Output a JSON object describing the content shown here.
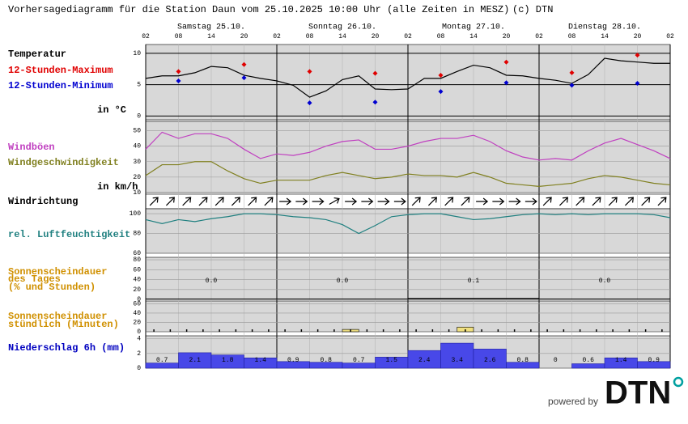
{
  "title": "Vorhersagediagramm für die Station Daun vom 25.10.2025 10:00 Uhr (alle Zeiten in MESZ)",
  "copyright": "(c) DTN",
  "days": [
    "Samstag 25.10.",
    "Sonntag 26.10.",
    "Montag 27.10.",
    "Dienstag 28.10."
  ],
  "time_labels": [
    "02",
    "08",
    "14",
    "20",
    "02",
    "08",
    "14",
    "20",
    "02",
    "08",
    "14",
    "20",
    "02",
    "08",
    "14",
    "20",
    "02"
  ],
  "chart_data": [
    {
      "type": "line",
      "heading": "Temperatur",
      "unit": "in °C",
      "ylim": [
        -0.6,
        11.4
      ],
      "yticks": [
        0,
        5,
        10
      ],
      "series": [
        {
          "style": "line",
          "color": "#000000",
          "values": [
            6.0,
            6.4,
            6.4,
            6.9,
            7.9,
            7.7,
            6.5,
            6.0,
            5.6,
            4.9,
            3.0,
            4.0,
            5.8,
            6.4,
            4.3,
            4.2,
            4.3,
            6.0,
            6.0,
            7.1,
            8.1,
            7.7,
            6.5,
            6.4,
            6.0,
            5.7,
            5.2,
            6.6,
            9.2,
            8.8,
            8.6,
            8.4,
            8.4
          ]
        },
        {
          "style": "points",
          "name": "12-Stunden-Maximum",
          "color": "#e00000",
          "values": [
            7.1,
            8.2,
            7.1,
            6.8,
            6.5,
            8.6,
            6.9,
            9.7
          ]
        },
        {
          "style": "points",
          "name": "12-Stunden-Minimum",
          "color": "#0000d0",
          "values": [
            5.6,
            6.1,
            2.1,
            2.2,
            3.9,
            5.3,
            4.9,
            5.2
          ]
        }
      ]
    },
    {
      "type": "line",
      "unit": "in km/h",
      "ylim": [
        10,
        56
      ],
      "yticks": [
        10,
        20,
        30,
        40,
        50
      ],
      "series": [
        {
          "style": "line",
          "name": "Windböen",
          "color": "#c040c0",
          "values": [
            38,
            49,
            45,
            48,
            48,
            45,
            38,
            32,
            35,
            34,
            36,
            40,
            43,
            44,
            38,
            38,
            40,
            43,
            45,
            45,
            47,
            43,
            37,
            33,
            31,
            32,
            31,
            37,
            42,
            45,
            41,
            37,
            32
          ]
        },
        {
          "style": "line",
          "name": "Windgeschwindigkeit",
          "color": "#808020",
          "values": [
            21,
            28,
            28,
            30,
            30,
            24,
            19,
            16,
            18,
            18,
            18,
            21,
            23,
            21,
            19,
            20,
            22,
            21,
            21,
            20,
            23,
            20,
            16,
            15,
            14,
            15,
            16,
            19,
            21,
            20,
            18,
            16,
            15
          ]
        }
      ]
    },
    {
      "type": "arrows",
      "heading": "Windrichtung",
      "values": [
        45,
        45,
        45,
        45,
        45,
        45,
        45,
        45,
        90,
        90,
        90,
        60,
        90,
        90,
        90,
        90,
        45,
        45,
        45,
        45,
        90,
        90,
        90,
        90,
        45,
        45,
        45,
        45,
        45,
        45,
        45,
        45
      ]
    },
    {
      "type": "line",
      "ylim": [
        60,
        105
      ],
      "yticks": [
        60,
        80,
        100
      ],
      "series": [
        {
          "style": "line",
          "name": "rel. Luftfeuchtigkeit",
          "color": "#208080",
          "values": [
            94,
            90,
            94,
            92,
            95,
            97,
            100,
            100,
            99,
            97,
            96,
            94,
            89,
            80,
            88,
            97,
            99,
            100,
            100,
            97,
            94,
            95,
            97,
            99,
            100,
            99,
            100,
            99,
            100,
            100,
            100,
            99,
            96
          ]
        }
      ]
    },
    {
      "type": "bar",
      "heading_lines": [
        "Sonnenscheindauer",
        "des Tages",
        "(% und Stunden)"
      ],
      "heading_color": "#d09000",
      "color": "#000000",
      "ylim": [
        0,
        85
      ],
      "yticks": [
        0,
        20,
        40,
        60,
        80
      ],
      "values": [
        0,
        0,
        1,
        0
      ],
      "hours": [
        "0.0",
        "0.0",
        "0.1",
        "0.0"
      ]
    },
    {
      "type": "bar",
      "heading_lines": [
        "Sonnenscheindauer",
        "stündlich (Minuten)"
      ],
      "heading_color": "#d09000",
      "color": "#f0e080",
      "ylim": [
        0,
        66
      ],
      "yticks": [
        0,
        20,
        40,
        60
      ],
      "values": [
        0,
        0,
        0,
        0,
        0,
        0,
        0,
        0,
        0,
        0,
        0,
        0,
        5,
        0,
        0,
        0,
        0,
        0,
        0,
        10,
        0,
        0,
        0,
        0,
        0,
        0,
        0,
        0,
        0,
        0,
        0,
        0
      ]
    },
    {
      "type": "bar",
      "heading": "Niederschlag 6h (mm)",
      "heading_color": "#0000c0",
      "color": "#4848e8",
      "ylim": [
        0,
        4.4
      ],
      "yticks": [
        0,
        2,
        4
      ],
      "values": [
        0.7,
        2.1,
        1.8,
        1.4,
        0.9,
        0.8,
        0.7,
        1.5,
        2.4,
        3.4,
        2.6,
        0.8,
        0,
        0.6,
        1.4,
        0.9
      ]
    }
  ],
  "footer": {
    "powered_by": "powered by",
    "logo": "DTN"
  }
}
